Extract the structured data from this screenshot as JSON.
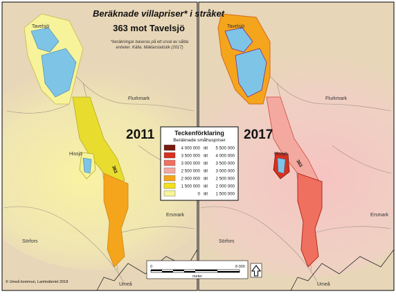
{
  "title": {
    "line1": "Beräknade villapriser* i stråket",
    "line2": "363 mot Tavelsjö",
    "footnote_line1": "*beräkningar baseras på ett urval av sålda",
    "footnote_line2": "enheter. Källa: Mäklarstatistik (2017)"
  },
  "panels": {
    "left_year": "2011",
    "right_year": "2017"
  },
  "places": {
    "tavelsjo": "Tavelsjö",
    "flurkmark": "Flurkmark",
    "hissjo": "Hissjö",
    "ersmark": "Ersmark",
    "sorfors": "Sörfors",
    "umea": "Umeå",
    "route": "363"
  },
  "legend": {
    "title": "Teckenförklaring",
    "subtitle": "Beräknade småhuspriser",
    "classes": [
      {
        "from": "4 000 000",
        "sep": "till",
        "to": "5 500 000",
        "color": "#7a1a10"
      },
      {
        "from": "3 500 000",
        "sep": "till",
        "to": "4 000 000",
        "color": "#d7301f"
      },
      {
        "from": "3 000 000",
        "sep": "till",
        "to": "3 500 000",
        "color": "#f07060"
      },
      {
        "from": "2 500 000",
        "sep": "till",
        "to": "3 000 000",
        "color": "#f4a9a0"
      },
      {
        "from": "2 000 000",
        "sep": "till",
        "to": "2 500 000",
        "color": "#f5a51c"
      },
      {
        "from": "1 500 000",
        "sep": "till",
        "to": "2 000 000",
        "color": "#f2e01f"
      },
      {
        "from": "0",
        "sep": "till",
        "to": "1 500 000",
        "color": "#f6f39a"
      }
    ]
  },
  "scalebar": {
    "start": "0",
    "end": "8 000",
    "unit": "meter"
  },
  "credits": "© Umeå kommun, Lantmäteriet 2018",
  "colors": {
    "terrain": "#e8d6b8",
    "water": "#7ec4e6",
    "haze_2011": "#fbf6a6",
    "haze_2017": "#f6c9c9"
  }
}
